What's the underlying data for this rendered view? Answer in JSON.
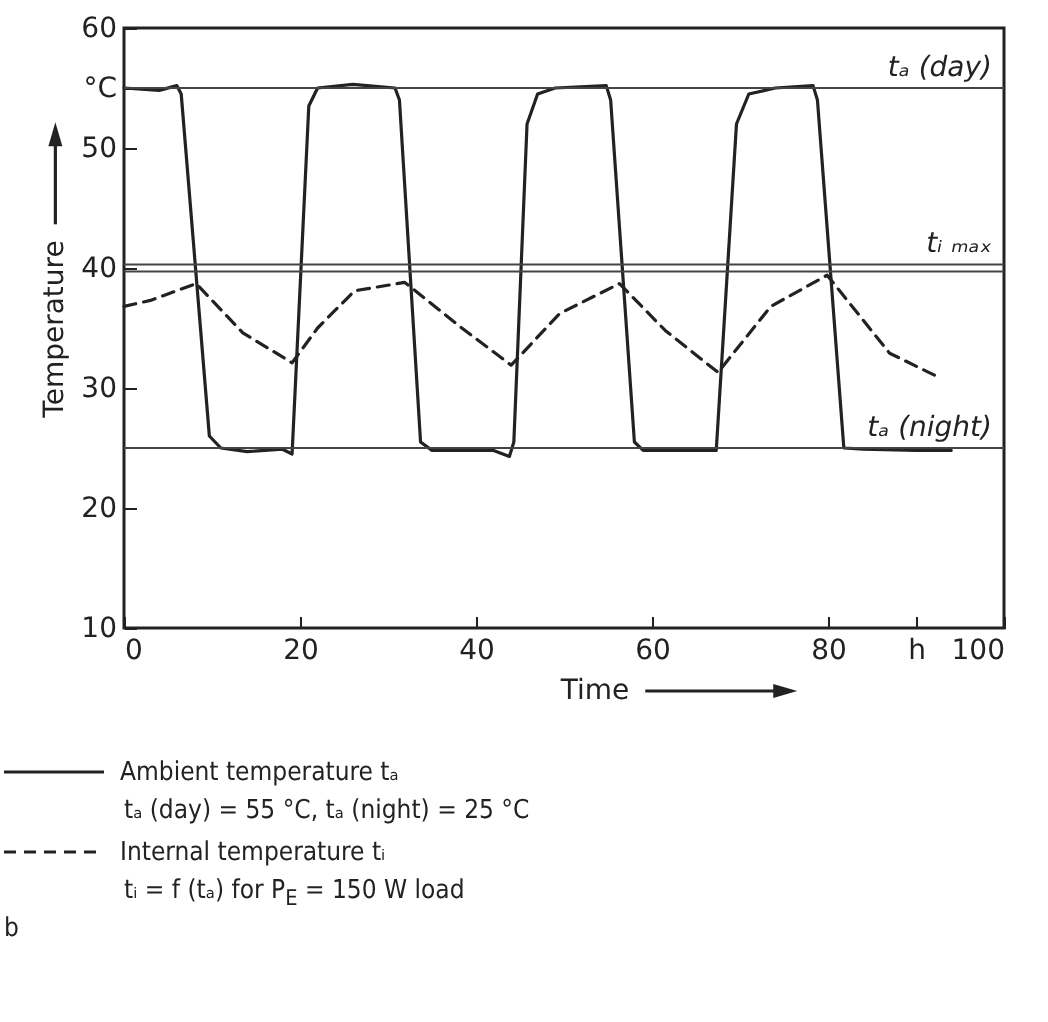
{
  "chart_data": {
    "type": "line",
    "xlabel": "Time",
    "ylabel": "Temperature",
    "xlim": [
      0,
      100
    ],
    "ylim": [
      10,
      60
    ],
    "xticks": [
      0,
      20,
      40,
      60,
      80,
      {
        "value": 90,
        "label": "h"
      },
      100
    ],
    "yticks": [
      10,
      20,
      30,
      40,
      50,
      {
        "value": 55,
        "label": "°C"
      },
      60
    ],
    "grid": false,
    "legend": "bottom left",
    "marker": "none",
    "series": [
      {
        "name": "Ambient temperature tₐ",
        "color": "#222222",
        "line_style": "solid",
        "x": [
          0,
          4,
          6,
          6.5,
          9.7,
          11,
          14,
          18,
          19.1,
          21,
          22,
          26,
          30.8,
          31.3,
          33.7,
          35,
          42,
          43.8,
          44.3,
          45.8,
          47,
          49,
          54.8,
          55.3,
          58,
          59,
          66,
          67.3,
          69.6,
          71,
          74,
          78.3,
          78.8,
          81.8,
          84,
          90,
          94
        ],
        "values": [
          55,
          54.8,
          55.2,
          54.5,
          26,
          25,
          24.7,
          24.9,
          24.5,
          53.5,
          55,
          55.3,
          55,
          54,
          25.5,
          24.8,
          24.8,
          24.3,
          25.5,
          52,
          54.5,
          55,
          55.2,
          54,
          25.5,
          24.8,
          24.8,
          24.8,
          52,
          54.5,
          55,
          55.2,
          54,
          25,
          24.9,
          24.8,
          24.8
        ]
      },
      {
        "name": "Internal temperature tᵢ",
        "color": "#222222",
        "line_style": "dashed",
        "x": [
          0,
          3,
          8.2,
          13.5,
          19.1,
          22,
          26.2,
          31.9,
          38.2,
          44,
          49.5,
          56.3,
          61.5,
          67.5,
          73.5,
          79.9,
          87,
          92.3
        ],
        "values": [
          36.8,
          37.3,
          38.7,
          34.6,
          32.1,
          35,
          38.1,
          38.8,
          35.1,
          31.9,
          36.2,
          38.7,
          34.8,
          31.3,
          36.8,
          39.4,
          32.9,
          31
        ]
      }
    ],
    "ref_lines": [
      {
        "axis": "y",
        "value": 55,
        "label": "tₐ (day)",
        "color": "#444444"
      },
      {
        "axis": "y",
        "value": 40.3,
        "label": "tᵢ ₘₐₓ",
        "color": "#444444"
      },
      {
        "axis": "y",
        "value": 39.7,
        "label": null,
        "color": "#444444"
      },
      {
        "axis": "y",
        "value": 25,
        "label": "tₐ (night)",
        "color": "#444444"
      }
    ],
    "annotations": [
      "tₐ (day) = 55 °C, tₐ (night) = 25 °C",
      "tᵢ = f (tₐ) for P$_{E}$ = 150 W load",
      "b"
    ]
  }
}
